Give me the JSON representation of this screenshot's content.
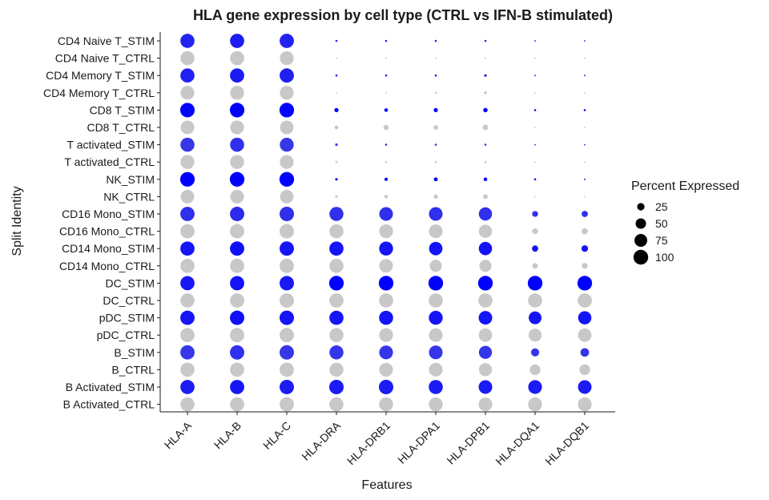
{
  "chart_data": {
    "type": "dotplot",
    "title": "HLA gene expression by cell type (CTRL vs IFN-B stimulated)",
    "xlabel": "Features",
    "ylabel": "Split Identity",
    "features": [
      "HLA-A",
      "HLA-B",
      "HLA-C",
      "HLA-DRA",
      "HLA-DRB1",
      "HLA-DPA1",
      "HLA-DPB1",
      "HLA-DQA1",
      "HLA-DQB1"
    ],
    "identities": [
      "CD4 Naive T_STIM",
      "CD4 Naive T_CTRL",
      "CD4 Memory T_STIM",
      "CD4 Memory T_CTRL",
      "CD8 T_STIM",
      "CD8 T_CTRL",
      "T activated_STIM",
      "T activated_CTRL",
      "NK_STIM",
      "NK_CTRL",
      "CD16 Mono_STIM",
      "CD16 Mono_CTRL",
      "CD14 Mono_STIM",
      "CD14 Mono_CTRL",
      "DC_STIM",
      "DC_CTRL",
      "pDC_STIM",
      "pDC_CTRL",
      "B_STIM",
      "B_CTRL",
      "B Activated_STIM",
      "B Activated_CTRL"
    ],
    "pct_expressed": [
      [
        92,
        93,
        94,
        2,
        2,
        2,
        2,
        1,
        1
      ],
      [
        90,
        91,
        88,
        1,
        1,
        1,
        1,
        1,
        1
      ],
      [
        92,
        93,
        94,
        2,
        2,
        2,
        3,
        1,
        1
      ],
      [
        88,
        89,
        87,
        1,
        1,
        2,
        4,
        1,
        1
      ],
      [
        97,
        98,
        98,
        8,
        6,
        8,
        9,
        2,
        2
      ],
      [
        86,
        88,
        85,
        7,
        12,
        10,
        14,
        1,
        1
      ],
      [
        91,
        91,
        89,
        3,
        2,
        2,
        2,
        1,
        1
      ],
      [
        89,
        90,
        87,
        2,
        2,
        2,
        2,
        1,
        1
      ],
      [
        98,
        99,
        99,
        3,
        5,
        7,
        6,
        2,
        1
      ],
      [
        85,
        87,
        84,
        3,
        6,
        8,
        10,
        1,
        1
      ],
      [
        94,
        95,
        96,
        90,
        86,
        86,
        80,
        16,
        18
      ],
      [
        93,
        94,
        95,
        91,
        88,
        86,
        80,
        15,
        18
      ],
      [
        93,
        94,
        95,
        93,
        89,
        83,
        81,
        18,
        20
      ],
      [
        92,
        93,
        94,
        92,
        85,
        67,
        68,
        14,
        16
      ],
      [
        93,
        94,
        96,
        98,
        99,
        99,
        99,
        99,
        99
      ],
      [
        92,
        94,
        95,
        93,
        92,
        91,
        93,
        92,
        93
      ],
      [
        94,
        95,
        96,
        92,
        91,
        89,
        85,
        75,
        81
      ],
      [
        93,
        94,
        95,
        91,
        87,
        85,
        82,
        78,
        83
      ],
      [
        94,
        95,
        96,
        91,
        87,
        86,
        78,
        30,
        34
      ],
      [
        92,
        93,
        94,
        90,
        87,
        86,
        78,
        52,
        52
      ],
      [
        92,
        94,
        95,
        96,
        96,
        91,
        85,
        87,
        85
      ],
      [
        91,
        93,
        94,
        92,
        90,
        89,
        86,
        89,
        88
      ]
    ],
    "stim_blue_intensity": [
      [
        0.58,
        0.68,
        0.7,
        0.5,
        0.5,
        0.5,
        0.5,
        0.5,
        0.5
      ],
      [
        0.62,
        0.77,
        0.67,
        0.5,
        0.5,
        0.5,
        0.45,
        0.5,
        0.5
      ],
      [
        0.8,
        0.63,
        0.78,
        0.5,
        0.4,
        0.4,
        0.5,
        0.5,
        0.5
      ],
      [
        0.58,
        0.55,
        0.45,
        0.78,
        0.55,
        0.68,
        0.61,
        0.55,
        0.6
      ],
      [
        0.55,
        0.73,
        0.88,
        0.7,
        0.78,
        0.65,
        0.75,
        0.95,
        0.78
      ],
      [
        0.64,
        0.7,
        0.72,
        0.93,
        0.93,
        0.96,
        0.97,
        0.88,
        0.88
      ],
      [
        0.7,
        0.71,
        0.52,
        0.78,
        0.78,
        0.7,
        0.72,
        0.75,
        0.78
      ],
      [
        0.72,
        0.8,
        0.8,
        0.78,
        0.75,
        0.75,
        0.71,
        0.68,
        0.75
      ],
      [
        0.47,
        0.53,
        0.53,
        0.74,
        0.79,
        0.69,
        0.7,
        0.9,
        0.84
      ]
    ],
    "stim_blue_identity": [
      [
        0.58,
        0.68,
        0.7
      ],
      [
        0.72,
        0.8,
        0.8
      ],
      [
        0.97,
        0.97,
        1.0
      ],
      [
        0.47,
        0.53,
        0.53
      ],
      [
        1.0,
        1.0,
        1.0
      ]
    ],
    "colors": {
      "stim_high": "#0000ff",
      "stim_low": "#8585c8",
      "ctrl": "#c8c8c8"
    },
    "legend": {
      "title": "Percent Expressed",
      "entries": [
        25,
        50,
        75,
        100
      ],
      "position": "right"
    }
  }
}
